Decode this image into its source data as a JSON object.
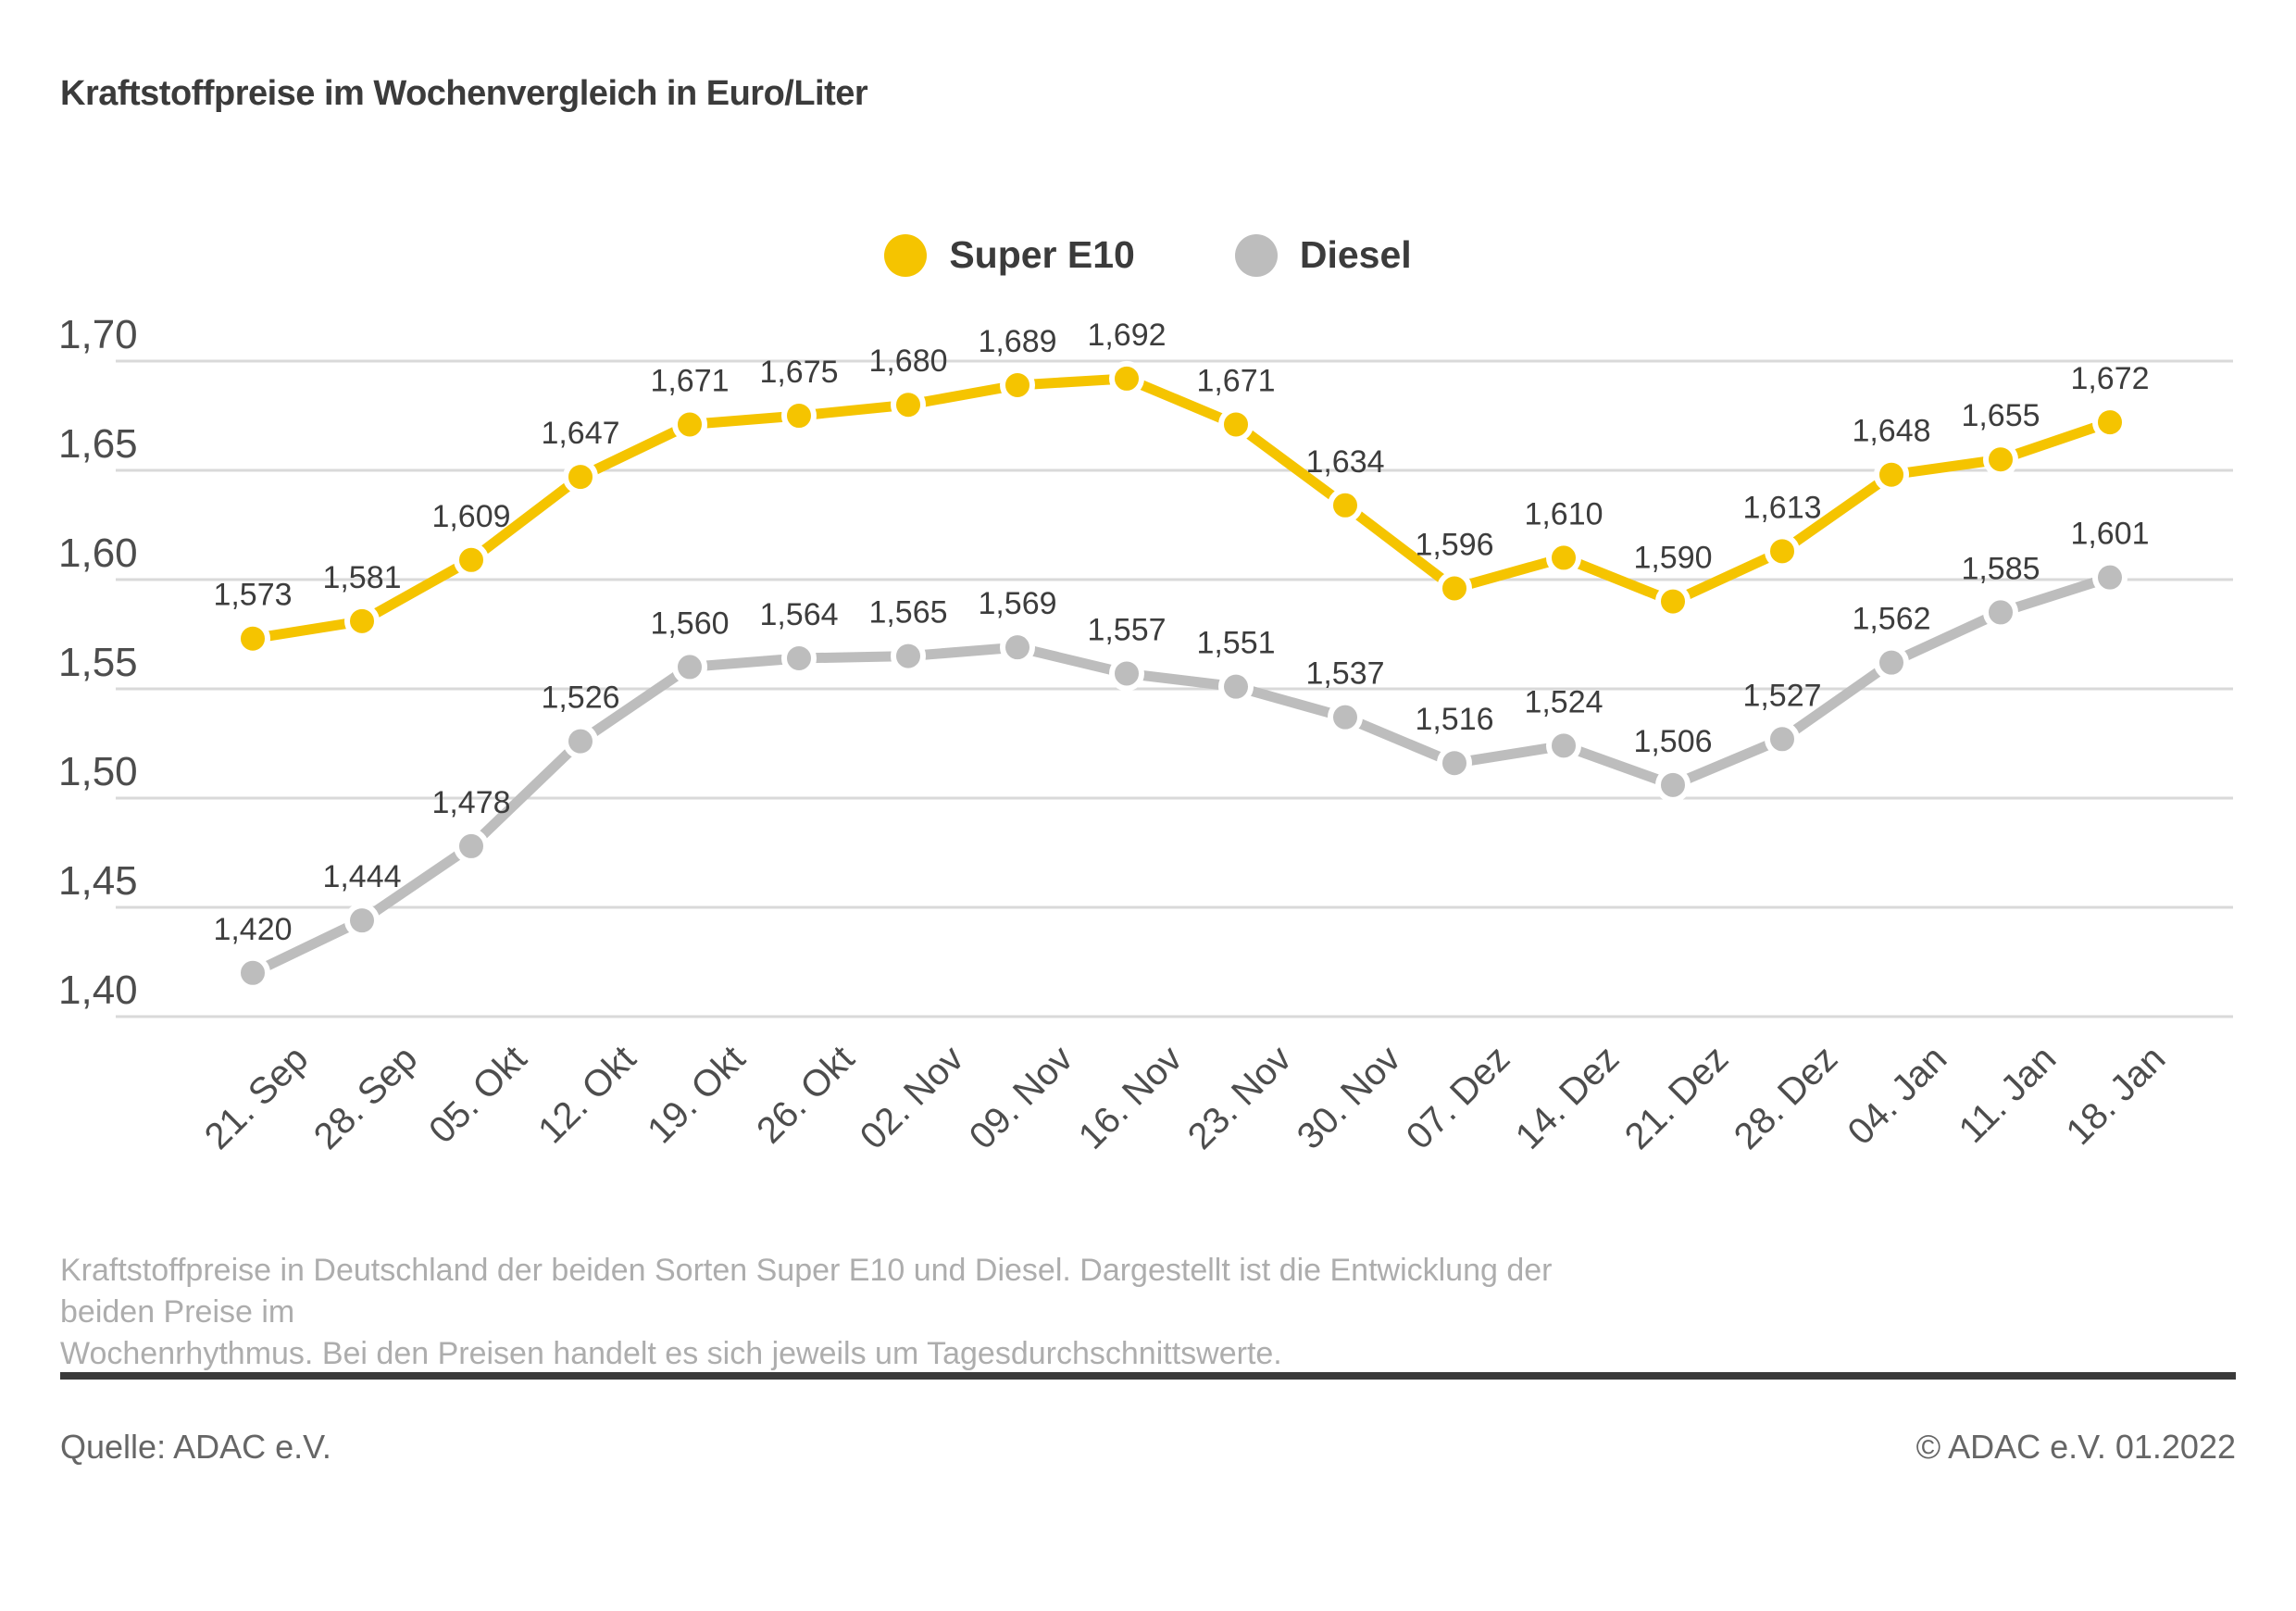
{
  "title": "Kraftstoffpreise im Wochenvergleich in Euro/Liter",
  "legend": {
    "items": [
      {
        "label": "Super E10",
        "color": "#f5c400"
      },
      {
        "label": "Diesel",
        "color": "#bdbdbd"
      }
    ]
  },
  "chart_data": {
    "type": "line",
    "categories": [
      "21. Sep",
      "28. Sep",
      "05. Okt",
      "12. Okt",
      "19. Okt",
      "26. Okt",
      "02. Nov",
      "09. Nov",
      "16. Nov",
      "23. Nov",
      "30. Nov",
      "07. Dez",
      "14. Dez",
      "21. Dez",
      "28. Dez",
      "04. Jan",
      "11. Jan",
      "18. Jan"
    ],
    "series": [
      {
        "name": "Diesel",
        "color": "#bdbdbd",
        "values": [
          1.42,
          1.444,
          1.478,
          1.526,
          1.56,
          1.564,
          1.565,
          1.569,
          1.557,
          1.551,
          1.537,
          1.516,
          1.524,
          1.506,
          1.527,
          1.562,
          1.585,
          1.601
        ]
      },
      {
        "name": "Super E10",
        "color": "#f5c400",
        "values": [
          1.573,
          1.581,
          1.609,
          1.647,
          1.671,
          1.675,
          1.68,
          1.689,
          1.692,
          1.671,
          1.634,
          1.596,
          1.61,
          1.59,
          1.613,
          1.648,
          1.655,
          1.672
        ]
      }
    ],
    "title": "Kraftstoffpreise im Wochenvergleich in Euro/Liter",
    "xlabel": "",
    "ylabel": "Euro/Liter",
    "ylim": [
      1.4,
      1.7
    ],
    "ytick_step": 0.05,
    "ytick_labels": [
      "1,40",
      "1,45",
      "1,50",
      "1,55",
      "1,60",
      "1,65",
      "1,70"
    ],
    "grid": true,
    "legend_position": "top-center",
    "value_labels": true,
    "decimal_separator": ","
  },
  "description": {
    "line1": "Kraftstoffpreise in Deutschland der beiden Sorten Super E10 und Diesel. Dargestellt ist die Entwicklung der beiden Preise im",
    "line2": "Wochenrhythmus. Bei den Preisen handelt es sich jeweils um Tagesdurchschnittswerte."
  },
  "footer": {
    "source": "Quelle: ADAC e.V.",
    "copyright": "© ADAC e.V. 01.2022"
  },
  "colors": {
    "super_e10": "#f5c400",
    "diesel": "#bdbdbd",
    "gridline": "#d9d9d9",
    "title_text": "#3b3b3b",
    "axis_text": "#4d4d4d",
    "description_text": "#adadad",
    "footer_text": "#666666",
    "divider": "#3a3a3a"
  }
}
